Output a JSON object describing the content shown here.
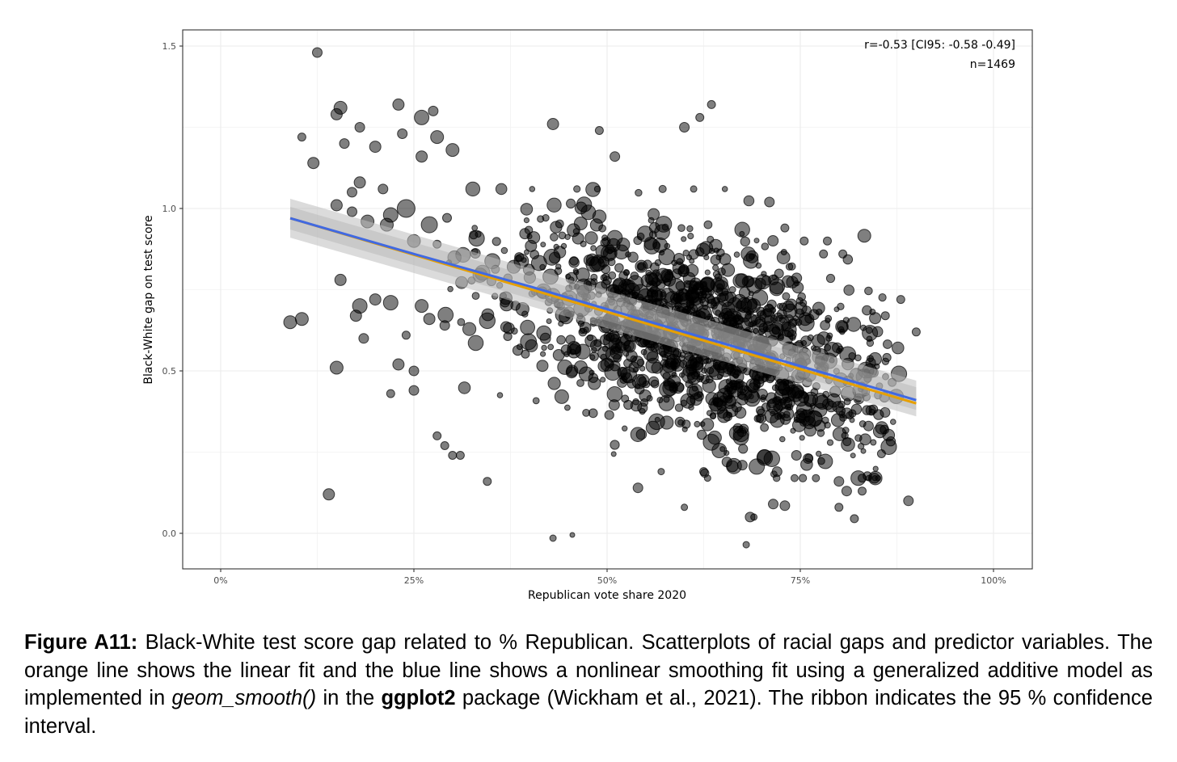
{
  "chart_data": {
    "type": "scatter",
    "title": "",
    "xlabel": "Republican vote share 2020",
    "ylabel": "Black-White gap on test score",
    "xlim": [
      -0.05,
      1.05
    ],
    "ylim": [
      -0.11,
      1.56
    ],
    "x_ticks": [
      0,
      0.25,
      0.5,
      0.75,
      1.0
    ],
    "x_tick_labels": [
      "0%",
      "25%",
      "50%",
      "75%",
      "100%"
    ],
    "y_ticks": [
      0.0,
      0.5,
      1.0,
      1.5
    ],
    "y_tick_labels": [
      "0.0",
      "0.5",
      "1.0",
      "1.5"
    ],
    "grid": true,
    "legend": "none",
    "annotation": {
      "line1": "r=-0.53 [CI95: -0.58 -0.49]",
      "line2": "n=1469",
      "position": "top-right"
    },
    "n": 1469,
    "correlation": {
      "r": -0.53,
      "ci95_low": -0.58,
      "ci95_high": -0.49
    },
    "point_style": {
      "fill": "#000000",
      "fill_opacity": 0.5,
      "stroke": "#000000",
      "size_encodes": "weight (radius ~3-11px)"
    },
    "fits": [
      {
        "name": "GAM smooth",
        "color": "#4169E1",
        "x": [
          0.09,
          0.25,
          0.4,
          0.5,
          0.6,
          0.7,
          0.8,
          0.9
        ],
        "y": [
          0.97,
          0.86,
          0.76,
          0.69,
          0.62,
          0.55,
          0.48,
          0.41
        ]
      },
      {
        "name": "Linear fit",
        "color": "#E69F00",
        "x": [
          0.09,
          0.9
        ],
        "y": [
          0.97,
          0.4
        ]
      }
    ],
    "ribbon": {
      "color": "#BEBEBE",
      "opacity": 0.6,
      "x": [
        0.09,
        0.9
      ],
      "upper": [
        1.03,
        0.47
      ],
      "lower": [
        0.91,
        0.36
      ],
      "description": "95% confidence interval"
    },
    "outlier_points": [
      {
        "x": 0.125,
        "y": 1.48,
        "r": 6
      },
      {
        "x": 0.105,
        "y": 1.22,
        "r": 5
      },
      {
        "x": 0.12,
        "y": 1.14,
        "r": 7
      },
      {
        "x": 0.15,
        "y": 1.29,
        "r": 7
      },
      {
        "x": 0.155,
        "y": 1.31,
        "r": 8
      },
      {
        "x": 0.18,
        "y": 1.25,
        "r": 6
      },
      {
        "x": 0.16,
        "y": 1.2,
        "r": 6
      },
      {
        "x": 0.2,
        "y": 1.19,
        "r": 7
      },
      {
        "x": 0.23,
        "y": 1.32,
        "r": 7
      },
      {
        "x": 0.235,
        "y": 1.23,
        "r": 6
      },
      {
        "x": 0.26,
        "y": 1.28,
        "r": 9
      },
      {
        "x": 0.275,
        "y": 1.3,
        "r": 6
      },
      {
        "x": 0.28,
        "y": 1.22,
        "r": 8
      },
      {
        "x": 0.3,
        "y": 1.18,
        "r": 8
      },
      {
        "x": 0.26,
        "y": 1.16,
        "r": 7
      },
      {
        "x": 0.15,
        "y": 1.01,
        "r": 7
      },
      {
        "x": 0.17,
        "y": 1.05,
        "r": 6
      },
      {
        "x": 0.18,
        "y": 1.08,
        "r": 7
      },
      {
        "x": 0.21,
        "y": 1.06,
        "r": 6
      },
      {
        "x": 0.17,
        "y": 0.99,
        "r": 6
      },
      {
        "x": 0.19,
        "y": 0.96,
        "r": 8
      },
      {
        "x": 0.22,
        "y": 0.98,
        "r": 9
      },
      {
        "x": 0.24,
        "y": 1.0,
        "r": 11
      },
      {
        "x": 0.27,
        "y": 0.95,
        "r": 10
      },
      {
        "x": 0.215,
        "y": 0.95,
        "r": 8
      },
      {
        "x": 0.25,
        "y": 0.9,
        "r": 8
      },
      {
        "x": 0.28,
        "y": 0.89,
        "r": 5
      },
      {
        "x": 0.09,
        "y": 0.65,
        "r": 8
      },
      {
        "x": 0.105,
        "y": 0.66,
        "r": 8
      },
      {
        "x": 0.15,
        "y": 0.51,
        "r": 8
      },
      {
        "x": 0.14,
        "y": 0.12,
        "r": 7
      },
      {
        "x": 0.155,
        "y": 0.78,
        "r": 7
      },
      {
        "x": 0.18,
        "y": 0.7,
        "r": 9
      },
      {
        "x": 0.175,
        "y": 0.67,
        "r": 7
      },
      {
        "x": 0.2,
        "y": 0.72,
        "r": 7
      },
      {
        "x": 0.22,
        "y": 0.71,
        "r": 9
      },
      {
        "x": 0.185,
        "y": 0.6,
        "r": 6
      },
      {
        "x": 0.23,
        "y": 0.52,
        "r": 7
      },
      {
        "x": 0.22,
        "y": 0.43,
        "r": 5
      },
      {
        "x": 0.25,
        "y": 0.5,
        "r": 6
      },
      {
        "x": 0.25,
        "y": 0.44,
        "r": 6
      },
      {
        "x": 0.24,
        "y": 0.61,
        "r": 5
      },
      {
        "x": 0.26,
        "y": 0.7,
        "r": 8
      },
      {
        "x": 0.27,
        "y": 0.66,
        "r": 7
      },
      {
        "x": 0.29,
        "y": 0.64,
        "r": 6
      },
      {
        "x": 0.28,
        "y": 0.3,
        "r": 5
      },
      {
        "x": 0.29,
        "y": 0.27,
        "r": 5
      },
      {
        "x": 0.3,
        "y": 0.24,
        "r": 5
      },
      {
        "x": 0.31,
        "y": 0.24,
        "r": 5
      },
      {
        "x": 0.345,
        "y": 0.16,
        "r": 5
      },
      {
        "x": 0.43,
        "y": -0.015,
        "r": 4
      },
      {
        "x": 0.455,
        "y": -0.005,
        "r": 3
      },
      {
        "x": 0.68,
        "y": -0.035,
        "r": 4
      },
      {
        "x": 0.43,
        "y": 1.26,
        "r": 7
      },
      {
        "x": 0.49,
        "y": 1.24,
        "r": 5
      },
      {
        "x": 0.51,
        "y": 1.16,
        "r": 6
      },
      {
        "x": 0.6,
        "y": 1.25,
        "r": 6
      },
      {
        "x": 0.62,
        "y": 1.28,
        "r": 5
      },
      {
        "x": 0.635,
        "y": 1.32,
        "r": 5
      },
      {
        "x": 0.71,
        "y": 1.02,
        "r": 6
      },
      {
        "x": 0.73,
        "y": 0.94,
        "r": 5
      },
      {
        "x": 0.755,
        "y": 0.9,
        "r": 5
      },
      {
        "x": 0.78,
        "y": 0.86,
        "r": 5
      },
      {
        "x": 0.785,
        "y": 0.9,
        "r": 5
      },
      {
        "x": 0.805,
        "y": 0.86,
        "r": 5
      },
      {
        "x": 0.88,
        "y": 0.72,
        "r": 5
      },
      {
        "x": 0.86,
        "y": 0.67,
        "r": 5
      },
      {
        "x": 0.9,
        "y": 0.62,
        "r": 5
      },
      {
        "x": 0.89,
        "y": 0.1,
        "r": 6
      },
      {
        "x": 0.855,
        "y": 0.245,
        "r": 5
      },
      {
        "x": 0.8,
        "y": 0.16,
        "r": 6
      },
      {
        "x": 0.81,
        "y": 0.13,
        "r": 6
      },
      {
        "x": 0.83,
        "y": 0.17,
        "r": 5
      },
      {
        "x": 0.83,
        "y": 0.13,
        "r": 5
      },
      {
        "x": 0.8,
        "y": 0.08,
        "r": 5
      },
      {
        "x": 0.82,
        "y": 0.045,
        "r": 5
      },
      {
        "x": 0.715,
        "y": 0.09,
        "r": 6
      },
      {
        "x": 0.73,
        "y": 0.085,
        "r": 6
      },
      {
        "x": 0.685,
        "y": 0.05,
        "r": 6
      },
      {
        "x": 0.69,
        "y": 0.05,
        "r": 4
      },
      {
        "x": 0.54,
        "y": 0.14,
        "r": 6
      },
      {
        "x": 0.6,
        "y": 0.08,
        "r": 4
      },
      {
        "x": 0.57,
        "y": 0.19,
        "r": 4
      },
      {
        "x": 0.625,
        "y": 0.19,
        "r": 5
      },
      {
        "x": 0.655,
        "y": 0.22,
        "r": 6
      },
      {
        "x": 0.63,
        "y": 0.17,
        "r": 4
      },
      {
        "x": 0.675,
        "y": 0.21,
        "r": 6
      },
      {
        "x": 0.72,
        "y": 0.19,
        "r": 6
      },
      {
        "x": 0.745,
        "y": 0.24,
        "r": 6
      },
      {
        "x": 0.76,
        "y": 0.23,
        "r": 6
      }
    ],
    "dense_cloud": {
      "count": 1380,
      "seed": 1469,
      "x_range": [
        0.28,
        0.88
      ],
      "trend_y_at_x": {
        "a": 1.035,
        "b": -0.7
      },
      "y_sd": 0.15,
      "r_range": [
        3,
        10
      ]
    }
  },
  "caption": {
    "figure_label": "Figure A11:",
    "text_1": " Black-White test score gap related to % Republican. Scatterplots of racial gaps and predictor variables. The orange line shows the linear fit and the blue line shows a nonlinear smoothing fit using a generalized additive model as implemented in ",
    "function_name": "geom_smooth()",
    "text_2": " in the ",
    "package_name": "ggplot2",
    "text_3": " package (Wickham et al., 2021). The ribbon indicates the 95 % confidence interval."
  }
}
